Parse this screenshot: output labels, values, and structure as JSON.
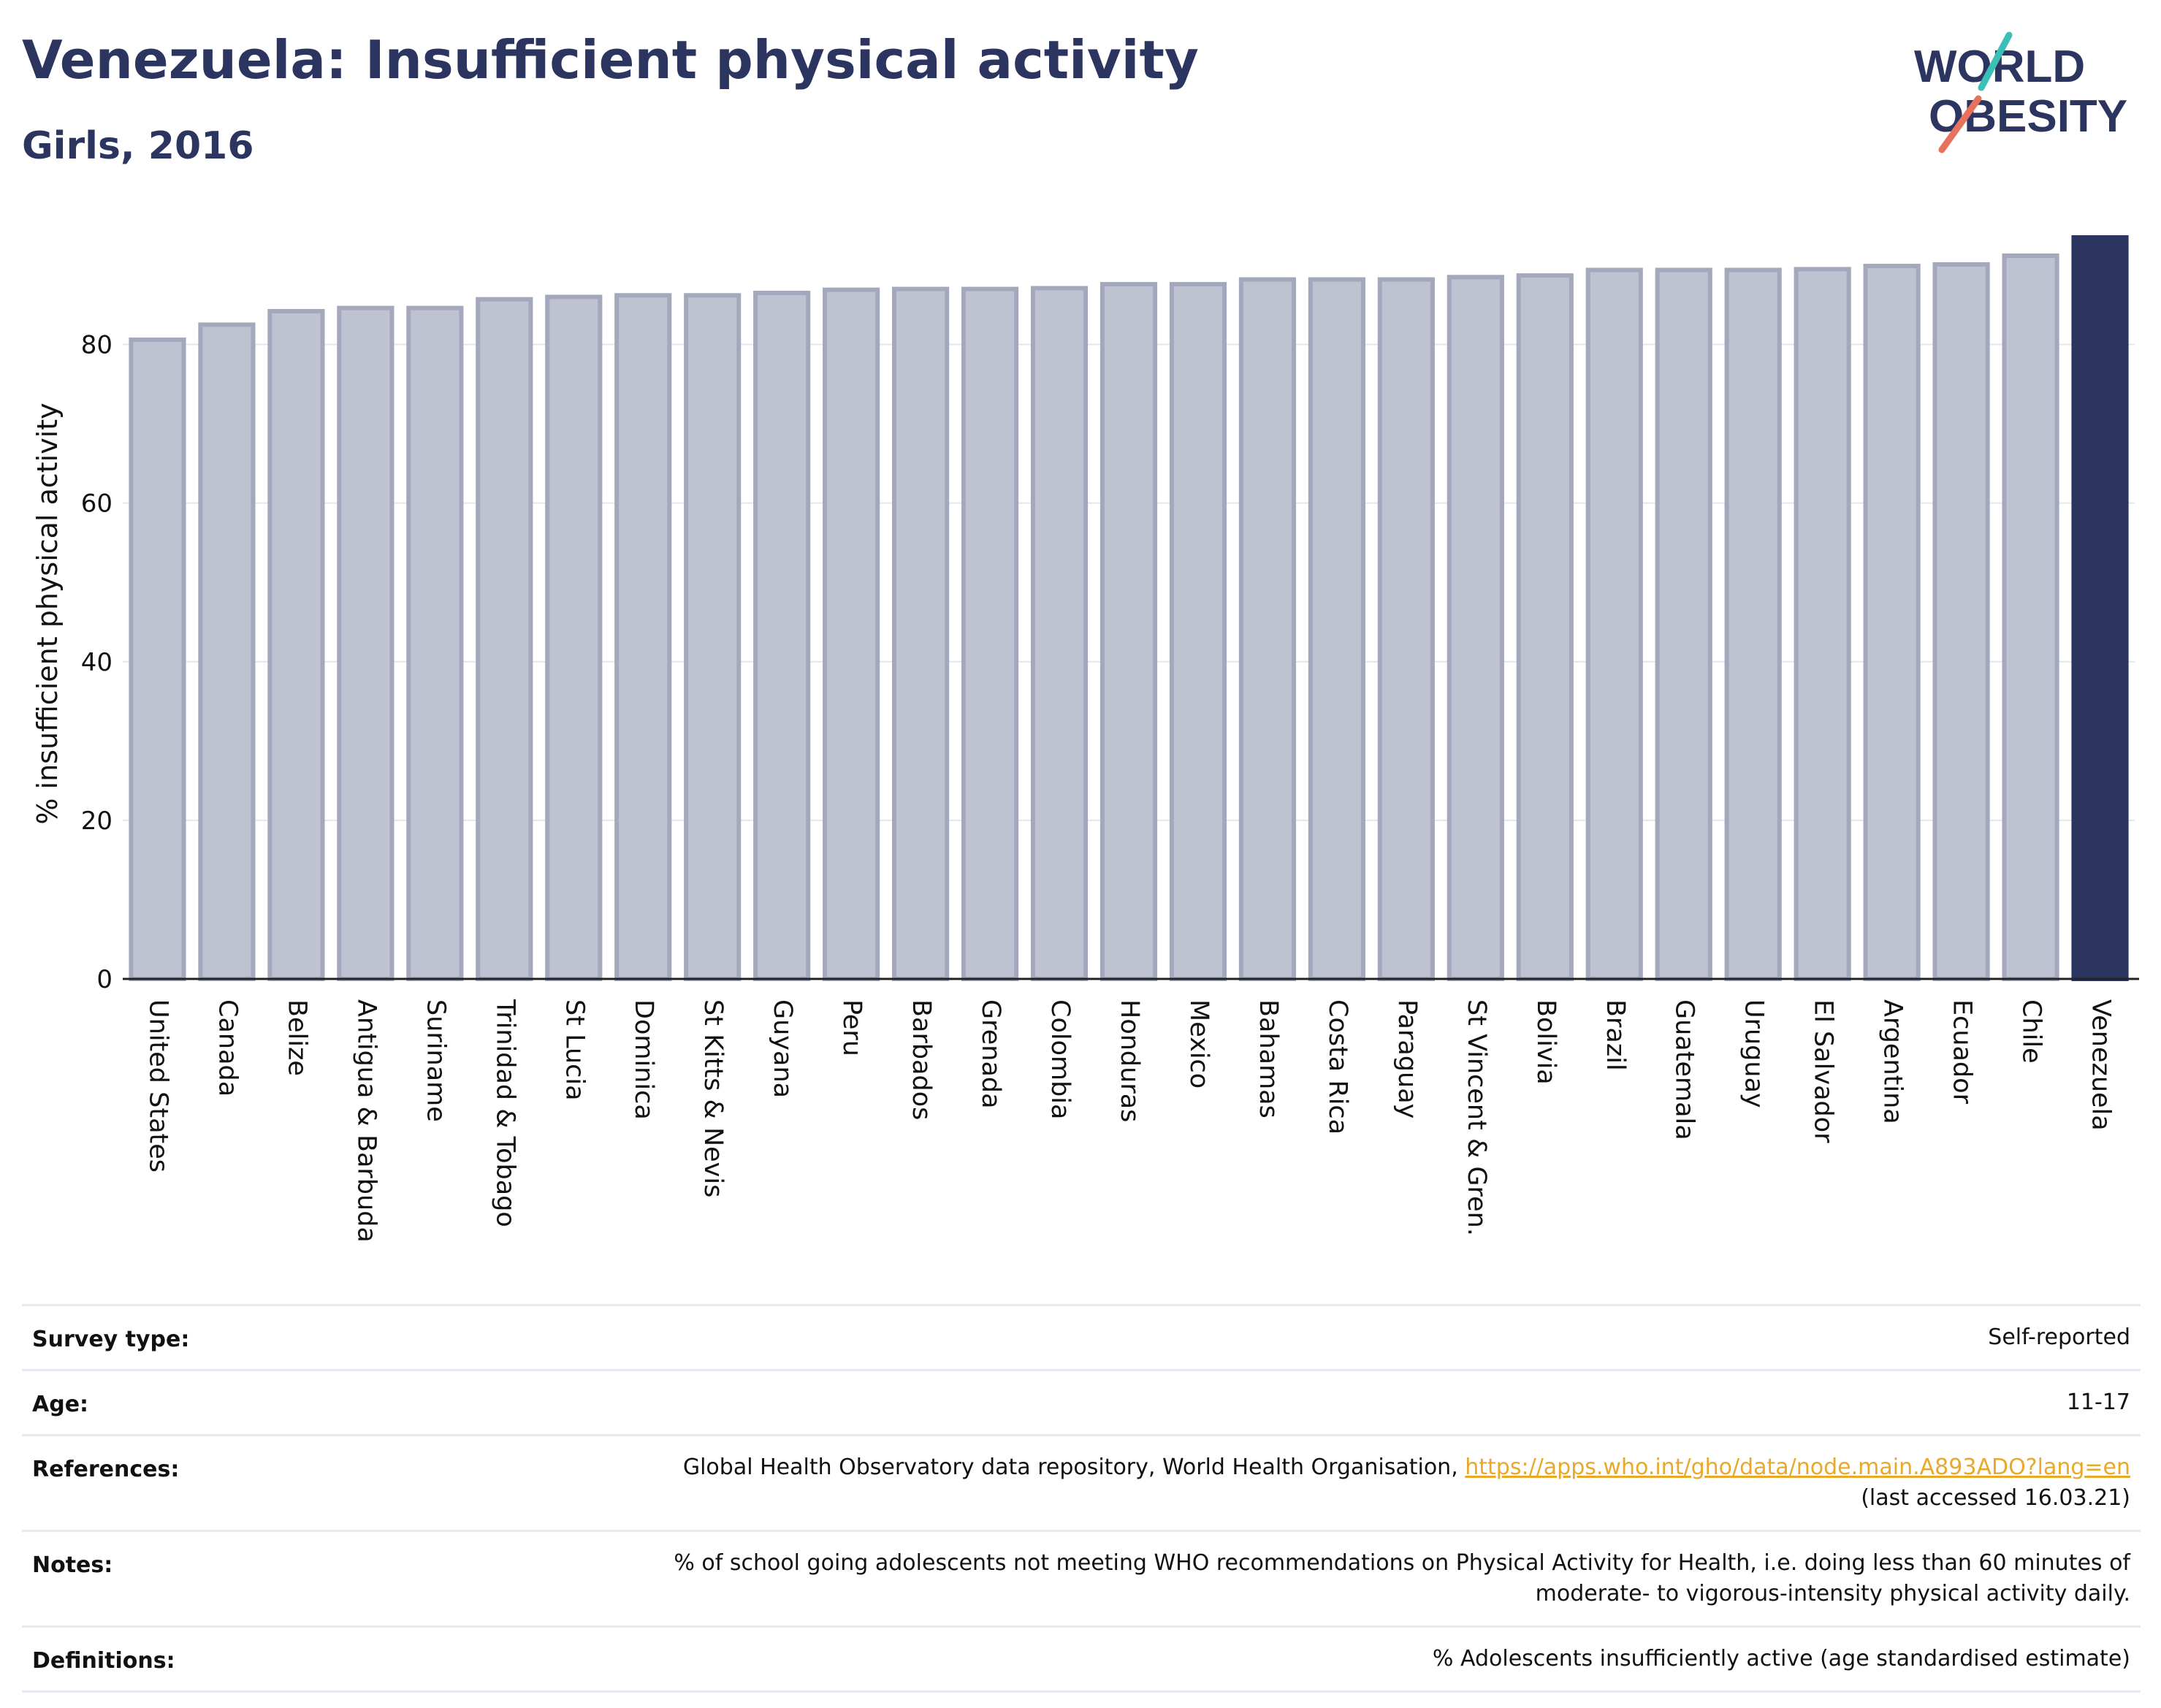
{
  "header": {
    "title": "Venezuela: Insufficient physical activity",
    "subtitle": "Girls, 2016"
  },
  "logo": {
    "line1": "WORLD",
    "line2": "OBESITY",
    "accent_teal": "#3cbfb6",
    "accent_coral": "#e8735c",
    "text_color": "#2b3560"
  },
  "colors": {
    "bar": "#bfc2d0",
    "bar_stroke": "#a4a8bd",
    "highlight": "#2b3560",
    "grid": "#e4e6ec"
  },
  "chart_data": {
    "type": "bar",
    "ylabel": "% insufficient physical activity",
    "ylim": [
      0,
      93.5
    ],
    "yticks": [
      0,
      20,
      40,
      60,
      80
    ],
    "grid": true,
    "highlight": "Venezuela",
    "categories": [
      "United States",
      "Canada",
      "Belize",
      "Antigua & Barbuda",
      "Suriname",
      "Trinidad & Tobago",
      "St Lucia",
      "Dominica",
      "St Kitts & Nevis",
      "Guyana",
      "Peru",
      "Barbados",
      "Grenada",
      "Colombia",
      "Honduras",
      "Mexico",
      "Bahamas",
      "Costa Rica",
      "Paraguay",
      "St Vincent & Gren.",
      "Bolivia",
      "Brazil",
      "Guatemala",
      "Uruguay",
      "El Salvador",
      "Argentina",
      "Ecuador",
      "Chile",
      "Venezuela"
    ],
    "values": [
      80.6,
      82.5,
      84.2,
      84.6,
      84.6,
      85.7,
      86.0,
      86.2,
      86.2,
      86.5,
      86.9,
      87.0,
      87.0,
      87.1,
      87.6,
      87.6,
      88.2,
      88.2,
      88.2,
      88.5,
      88.7,
      89.4,
      89.4,
      89.4,
      89.5,
      89.9,
      90.1,
      91.2,
      93.5
    ]
  },
  "info": {
    "survey_type_label": "Survey type:",
    "survey_type_value": "Self-reported",
    "age_label": "Age:",
    "age_value": "11-17",
    "references_label": "References:",
    "references_text": "Global Health Observatory data repository, World Health Organisation, ",
    "references_link": "https://apps.who.int/gho/data/node.main.A893ADO?lang=en",
    "references_note": "(last accessed 16.03.21)",
    "notes_label": "Notes:",
    "notes_line1": "% of school going adolescents not meeting WHO recommendations on Physical Activity for Health, i.e. doing less than 60 minutes of",
    "notes_line2": "moderate- to vigorous-intensity physical activity daily.",
    "definitions_label": "Definitions:",
    "definitions_value": "% Adolescents insufficiently active (age standardised estimate)"
  }
}
